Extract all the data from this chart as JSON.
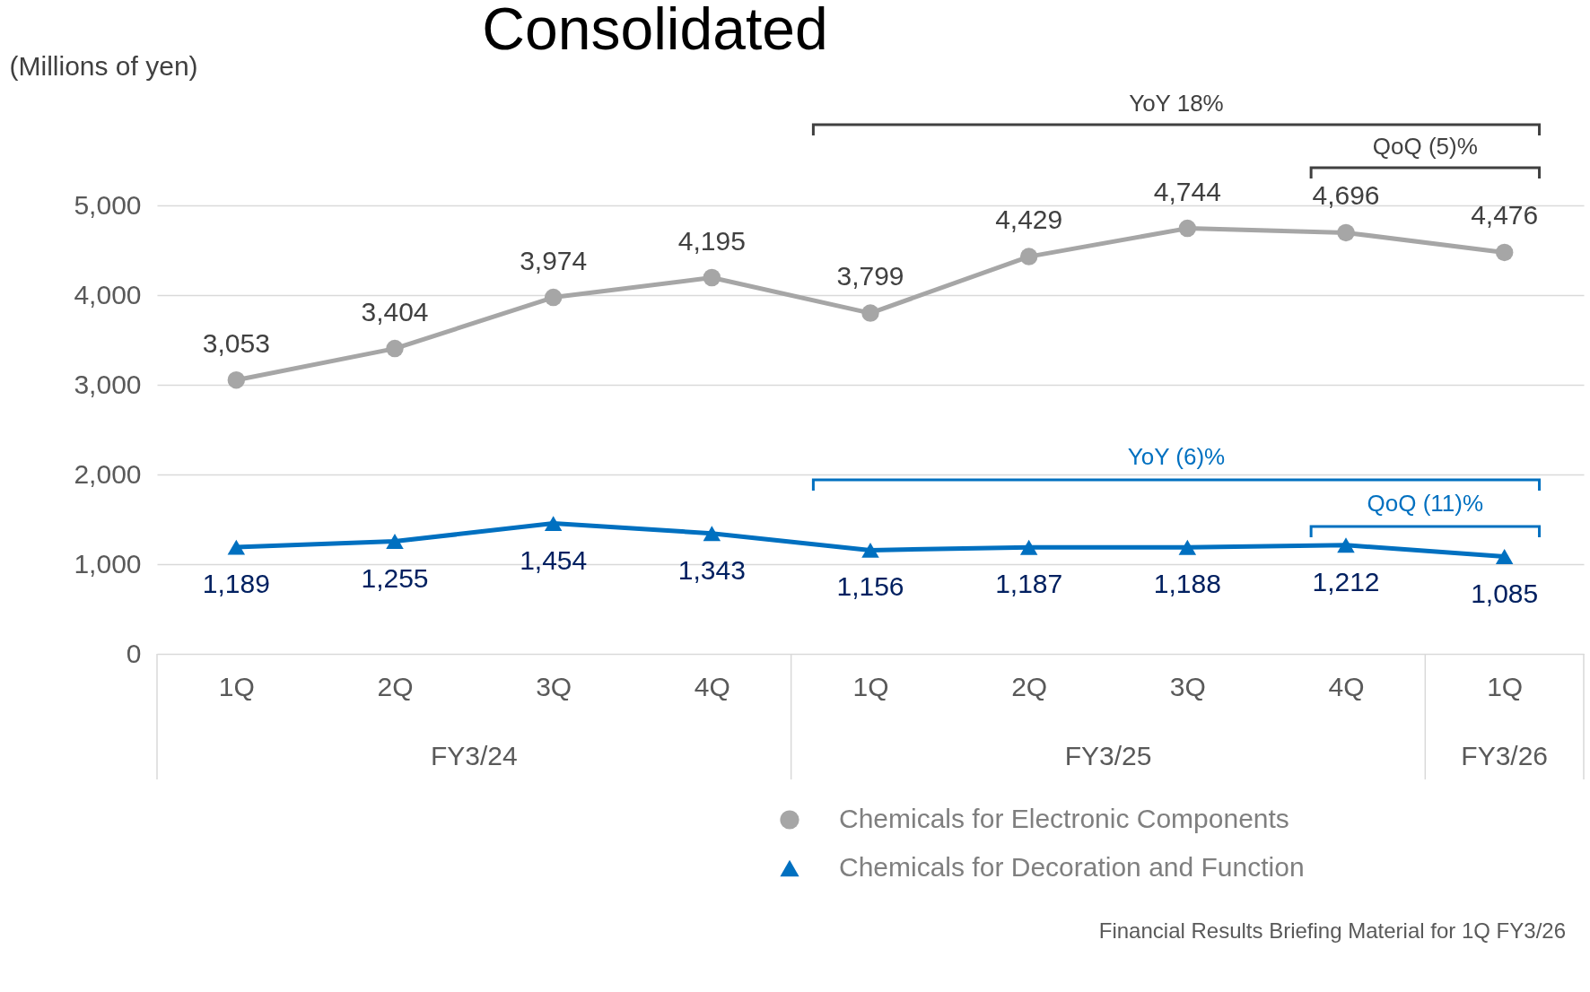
{
  "chart_data": {
    "type": "line",
    "title": "Consolidated",
    "ylabel": "(Millions of yen)",
    "categories": [
      "1Q",
      "2Q",
      "3Q",
      "4Q",
      "1Q",
      "2Q",
      "3Q",
      "4Q",
      "1Q"
    ],
    "series": [
      {
        "name": "Chemicals for Electronic Components",
        "color": "#a6a6a6",
        "marker": "circle",
        "values": [
          3053,
          3404,
          3974,
          4195,
          3799,
          4429,
          4744,
          4696,
          4476
        ],
        "value_labels": [
          "3,053",
          "3,404",
          "3,974",
          "4,195",
          "3,799",
          "4,429",
          "4,744",
          "4,696",
          "4,476"
        ]
      },
      {
        "name": "Chemicals for Decoration and Function",
        "color": "#0070c0",
        "marker": "triangle",
        "values": [
          1189,
          1255,
          1454,
          1343,
          1156,
          1187,
          1188,
          1212,
          1085
        ],
        "value_labels": [
          "1,189",
          "1,255",
          "1,454",
          "1,343",
          "1,156",
          "1,187",
          "1,188",
          "1,212",
          "1,085"
        ]
      }
    ],
    "ylim": [
      0,
      5000
    ],
    "yticks": [
      0,
      {
        "value": 1000,
        "label": "1,000"
      },
      {
        "value": 2000,
        "label": "2,000"
      },
      {
        "value": 3000,
        "label": "3,000"
      },
      {
        "value": 4000,
        "label": "4,000"
      },
      {
        "value": 5000,
        "label": "5,000"
      }
    ],
    "grid": "y",
    "legend": "bottom",
    "annotations": [
      "FY3/24",
      "FY3/25",
      "FY3/26",
      "YoY 18%",
      "QoQ (5)%",
      "YoY (6)%",
      "QoQ (11)%",
      "Financial Results Briefing Material for 1Q FY3/26"
    ]
  }
}
